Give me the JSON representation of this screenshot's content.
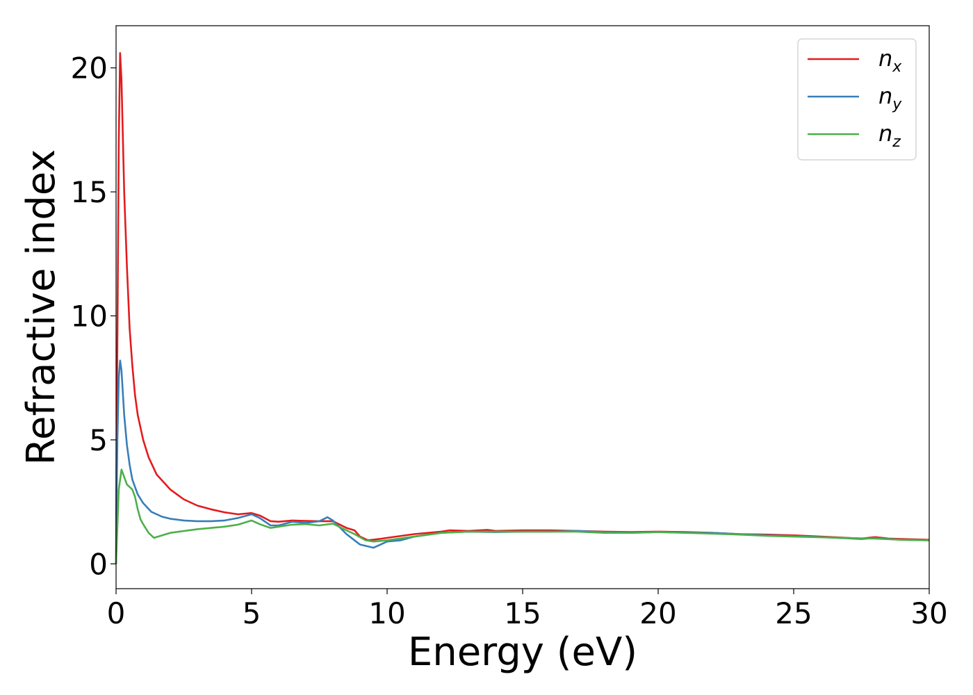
{
  "chart_data": {
    "type": "line",
    "xlabel": "Energy (eV)",
    "ylabel": "Refractive index",
    "xlim": [
      0,
      30
    ],
    "ylim": [
      -1,
      21.7
    ],
    "xticks": [
      "0",
      "5",
      "10",
      "15",
      "20",
      "25",
      "30"
    ],
    "yticks": [
      "0",
      "5",
      "10",
      "15",
      "20"
    ],
    "grid": false,
    "legend_position": "top-right",
    "series": [
      {
        "name": "n_x",
        "legend_base": "n",
        "legend_sub": "x",
        "color": "#e41a1c",
        "points": [
          [
            0,
            0
          ],
          [
            0.02,
            5
          ],
          [
            0.05,
            9
          ],
          [
            0.1,
            17
          ],
          [
            0.15,
            20.6
          ],
          [
            0.2,
            19.5
          ],
          [
            0.3,
            15
          ],
          [
            0.4,
            12
          ],
          [
            0.5,
            9.5
          ],
          [
            0.6,
            8
          ],
          [
            0.7,
            6.8
          ],
          [
            0.8,
            6
          ],
          [
            1,
            5
          ],
          [
            1.2,
            4.3
          ],
          [
            1.5,
            3.6
          ],
          [
            2,
            3
          ],
          [
            2.5,
            2.6
          ],
          [
            3,
            2.35
          ],
          [
            3.5,
            2.2
          ],
          [
            4,
            2.08
          ],
          [
            4.5,
            2.0
          ],
          [
            5,
            2.05
          ],
          [
            5.3,
            1.95
          ],
          [
            5.7,
            1.72
          ],
          [
            6,
            1.7
          ],
          [
            6.5,
            1.75
          ],
          [
            7,
            1.73
          ],
          [
            7.5,
            1.72
          ],
          [
            8,
            1.72
          ],
          [
            8.5,
            1.45
          ],
          [
            8.8,
            1.35
          ],
          [
            9,
            1.1
          ],
          [
            9.3,
            0.95
          ],
          [
            9.7,
            1.0
          ],
          [
            10,
            1.05
          ],
          [
            11,
            1.2
          ],
          [
            12,
            1.3
          ],
          [
            12.3,
            1.35
          ],
          [
            13,
            1.33
          ],
          [
            13.7,
            1.37
          ],
          [
            14,
            1.33
          ],
          [
            15,
            1.35
          ],
          [
            16,
            1.35
          ],
          [
            17,
            1.33
          ],
          [
            18,
            1.3
          ],
          [
            19,
            1.28
          ],
          [
            20,
            1.3
          ],
          [
            21,
            1.28
          ],
          [
            22,
            1.25
          ],
          [
            23,
            1.2
          ],
          [
            24,
            1.18
          ],
          [
            25,
            1.15
          ],
          [
            26,
            1.1
          ],
          [
            27,
            1.05
          ],
          [
            27.5,
            1.02
          ],
          [
            28,
            1.08
          ],
          [
            28.5,
            1.02
          ],
          [
            29,
            1.0
          ],
          [
            30,
            0.97
          ]
        ]
      },
      {
        "name": "n_y",
        "legend_base": "n",
        "legend_sub": "y",
        "color": "#377eb8",
        "points": [
          [
            0,
            0
          ],
          [
            0.02,
            2.5
          ],
          [
            0.05,
            5
          ],
          [
            0.1,
            7.5
          ],
          [
            0.15,
            8.2
          ],
          [
            0.2,
            7.8
          ],
          [
            0.3,
            6
          ],
          [
            0.4,
            4.8
          ],
          [
            0.5,
            4
          ],
          [
            0.6,
            3.4
          ],
          [
            0.8,
            2.8
          ],
          [
            1,
            2.45
          ],
          [
            1.3,
            2.1
          ],
          [
            1.7,
            1.9
          ],
          [
            2,
            1.82
          ],
          [
            2.5,
            1.75
          ],
          [
            3,
            1.72
          ],
          [
            3.5,
            1.72
          ],
          [
            4,
            1.75
          ],
          [
            4.5,
            1.85
          ],
          [
            5,
            2.0
          ],
          [
            5.3,
            1.85
          ],
          [
            5.7,
            1.55
          ],
          [
            6,
            1.55
          ],
          [
            6.5,
            1.7
          ],
          [
            7,
            1.65
          ],
          [
            7.5,
            1.72
          ],
          [
            7.8,
            1.88
          ],
          [
            8,
            1.75
          ],
          [
            8.5,
            1.2
          ],
          [
            9,
            0.78
          ],
          [
            9.5,
            0.65
          ],
          [
            10,
            0.9
          ],
          [
            10.5,
            0.95
          ],
          [
            11,
            1.1
          ],
          [
            12,
            1.25
          ],
          [
            13,
            1.3
          ],
          [
            14,
            1.28
          ],
          [
            15,
            1.3
          ],
          [
            16,
            1.3
          ],
          [
            17,
            1.33
          ],
          [
            18,
            1.28
          ],
          [
            19,
            1.25
          ],
          [
            20,
            1.28
          ],
          [
            21,
            1.26
          ],
          [
            22,
            1.25
          ],
          [
            23,
            1.2
          ],
          [
            24,
            1.15
          ],
          [
            25,
            1.12
          ],
          [
            26,
            1.08
          ],
          [
            27,
            1.03
          ],
          [
            27.5,
            1.0
          ],
          [
            28,
            1.05
          ],
          [
            28.5,
            1.0
          ],
          [
            29,
            0.97
          ],
          [
            30,
            0.95
          ]
        ]
      },
      {
        "name": "n_z",
        "legend_base": "n",
        "legend_sub": "z",
        "color": "#4daf4a",
        "points": [
          [
            0,
            0
          ],
          [
            0.05,
            1.5
          ],
          [
            0.1,
            3
          ],
          [
            0.2,
            3.8
          ],
          [
            0.3,
            3.5
          ],
          [
            0.4,
            3.2
          ],
          [
            0.5,
            3.1
          ],
          [
            0.6,
            3.0
          ],
          [
            0.7,
            2.7
          ],
          [
            0.8,
            2.2
          ],
          [
            0.9,
            1.8
          ],
          [
            1,
            1.6
          ],
          [
            1.2,
            1.25
          ],
          [
            1.4,
            1.05
          ],
          [
            1.7,
            1.15
          ],
          [
            2,
            1.25
          ],
          [
            3,
            1.4
          ],
          [
            4,
            1.5
          ],
          [
            4.5,
            1.58
          ],
          [
            5,
            1.75
          ],
          [
            5.3,
            1.6
          ],
          [
            5.7,
            1.45
          ],
          [
            6,
            1.5
          ],
          [
            6.5,
            1.58
          ],
          [
            7,
            1.6
          ],
          [
            7.5,
            1.55
          ],
          [
            8,
            1.62
          ],
          [
            8.5,
            1.35
          ],
          [
            8.8,
            1.2
          ],
          [
            9.2,
            0.95
          ],
          [
            9.5,
            0.9
          ],
          [
            10,
            0.95
          ],
          [
            11,
            1.1
          ],
          [
            12,
            1.25
          ],
          [
            13,
            1.3
          ],
          [
            14,
            1.3
          ],
          [
            15,
            1.3
          ],
          [
            16,
            1.3
          ],
          [
            17,
            1.3
          ],
          [
            18,
            1.25
          ],
          [
            19,
            1.25
          ],
          [
            20,
            1.28
          ],
          [
            21,
            1.25
          ],
          [
            22,
            1.22
          ],
          [
            23,
            1.18
          ],
          [
            24,
            1.13
          ],
          [
            25,
            1.1
          ],
          [
            26,
            1.07
          ],
          [
            27,
            1.04
          ],
          [
            28,
            1.02
          ],
          [
            29,
            0.97
          ],
          [
            30,
            0.95
          ]
        ]
      }
    ]
  }
}
